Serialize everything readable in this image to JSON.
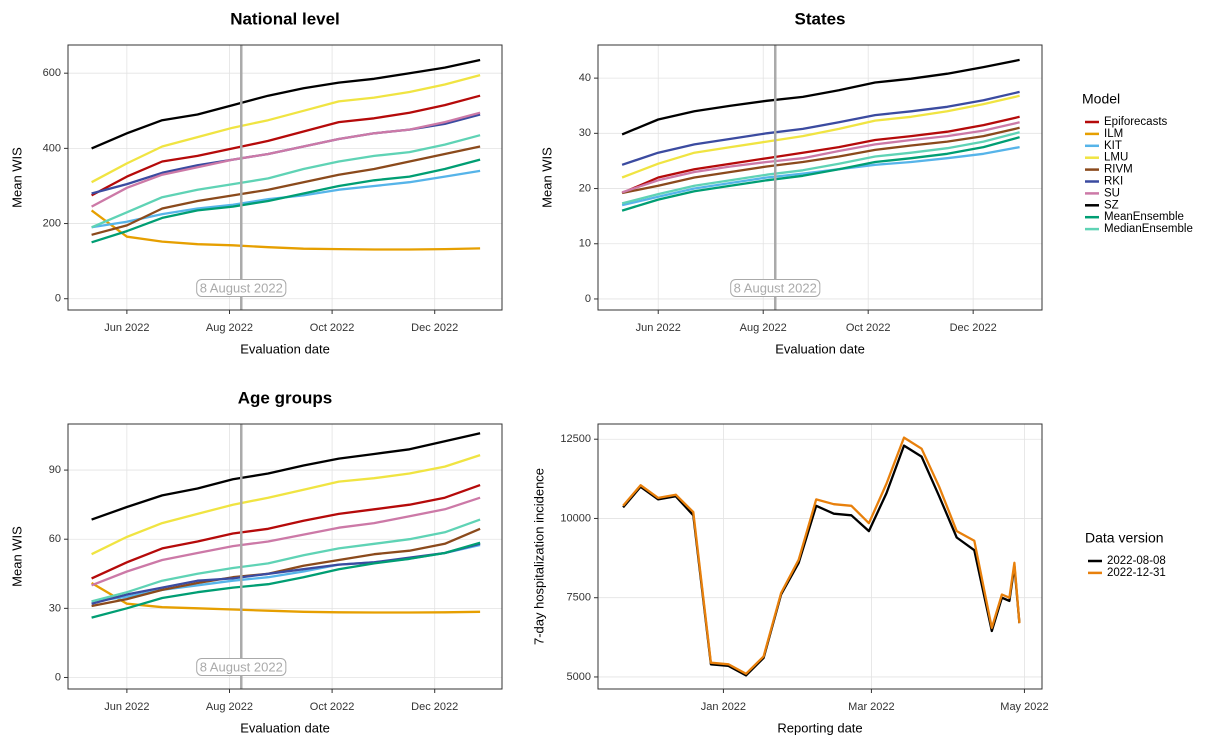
{
  "chart_data": [
    {
      "type": "line",
      "title": "National level",
      "x_label": "Evaluation date",
      "y_label": "Mean WIS",
      "x": [
        "2022-05-11",
        "2022-06-01",
        "2022-06-22",
        "2022-07-13",
        "2022-08-03",
        "2022-08-24",
        "2022-09-14",
        "2022-10-05",
        "2022-10-26",
        "2022-11-16",
        "2022-12-07",
        "2022-12-28"
      ],
      "xlim": [
        "2022-04-27",
        "2023-01-10"
      ],
      "xticks": [
        {
          "value": "2022-06-01",
          "label": "Jun 2022"
        },
        {
          "value": "2022-08-01",
          "label": "Aug 2022"
        },
        {
          "value": "2022-10-01",
          "label": "Oct 2022"
        },
        {
          "value": "2022-12-01",
          "label": "Dec 2022"
        }
      ],
      "ylim": [
        -30,
        675
      ],
      "yticks": [
        0,
        200,
        400,
        600
      ],
      "grid": true,
      "vline": {
        "x": "2022-08-08",
        "label": "8 August 2022"
      },
      "legend": {
        "title": "Model"
      },
      "series": [
        {
          "name": "Epiforecasts",
          "color": "#b50a0a",
          "values": [
            275,
            325,
            365,
            380,
            400,
            420,
            445,
            470,
            480,
            495,
            515,
            540
          ]
        },
        {
          "name": "ILM",
          "color": "#e69f00",
          "values": [
            235,
            165,
            152,
            145,
            142,
            137,
            133,
            132,
            131,
            131,
            132,
            134
          ]
        },
        {
          "name": "KIT",
          "color": "#56b4e9",
          "values": [
            190,
            205,
            225,
            240,
            250,
            265,
            275,
            290,
            300,
            310,
            325,
            340
          ]
        },
        {
          "name": "LMU",
          "color": "#f0e442",
          "values": [
            310,
            360,
            405,
            430,
            455,
            475,
            500,
            525,
            535,
            550,
            570,
            595
          ]
        },
        {
          "name": "RIVM",
          "color": "#8b4a1c",
          "values": [
            170,
            195,
            240,
            260,
            275,
            290,
            310,
            330,
            345,
            365,
            385,
            405
          ]
        },
        {
          "name": "RKI",
          "color": "#3b4ba0",
          "values": [
            280,
            305,
            335,
            355,
            370,
            385,
            405,
            425,
            440,
            450,
            465,
            490
          ]
        },
        {
          "name": "SU",
          "color": "#cc79a7",
          "values": [
            245,
            295,
            330,
            350,
            370,
            385,
            405,
            425,
            440,
            450,
            470,
            495
          ]
        },
        {
          "name": "SZ",
          "color": "#000000",
          "values": [
            400,
            440,
            475,
            490,
            515,
            540,
            560,
            575,
            585,
            600,
            615,
            635
          ]
        },
        {
          "name": "MeanEnsemble",
          "color": "#009e73",
          "values": [
            150,
            180,
            215,
            235,
            245,
            260,
            280,
            300,
            315,
            325,
            345,
            370
          ]
        },
        {
          "name": "MedianEnsemble",
          "color": "#5fd3b5",
          "values": [
            190,
            230,
            270,
            290,
            305,
            320,
            345,
            365,
            380,
            390,
            410,
            435
          ]
        }
      ]
    },
    {
      "type": "line",
      "title": "States",
      "x_label": "Evaluation date",
      "y_label": "Mean WIS",
      "x": [
        "2022-05-11",
        "2022-06-01",
        "2022-06-22",
        "2022-07-13",
        "2022-08-03",
        "2022-08-24",
        "2022-09-14",
        "2022-10-05",
        "2022-10-26",
        "2022-11-16",
        "2022-12-07",
        "2022-12-28"
      ],
      "xlim": [
        "2022-04-27",
        "2023-01-10"
      ],
      "xticks": [
        {
          "value": "2022-06-01",
          "label": "Jun 2022"
        },
        {
          "value": "2022-08-01",
          "label": "Aug 2022"
        },
        {
          "value": "2022-10-01",
          "label": "Oct 2022"
        },
        {
          "value": "2022-12-01",
          "label": "Dec 2022"
        }
      ],
      "ylim": [
        -2,
        46
      ],
      "yticks": [
        0,
        10,
        20,
        30,
        40
      ],
      "grid": true,
      "vline": {
        "x": "2022-08-08",
        "label": "8 August 2022"
      },
      "series": [
        {
          "name": "Epiforecasts",
          "color": "#b50a0a",
          "values": [
            19.2,
            22,
            23.5,
            24.5,
            25.5,
            26.5,
            27.5,
            28.8,
            29.5,
            30.3,
            31.5,
            33
          ]
        },
        {
          "name": "KIT",
          "color": "#56b4e9",
          "values": [
            17,
            18.5,
            20,
            21,
            22,
            22.7,
            23.5,
            24.3,
            24.8,
            25.5,
            26.3,
            27.5
          ]
        },
        {
          "name": "LMU",
          "color": "#f0e442",
          "values": [
            22,
            24.5,
            26.5,
            27.5,
            28.5,
            29.5,
            30.8,
            32.3,
            33,
            34,
            35.3,
            36.8
          ]
        },
        {
          "name": "RIVM",
          "color": "#8b4a1c",
          "values": [
            19.2,
            20.5,
            22,
            23,
            24,
            24.8,
            25.8,
            27,
            27.8,
            28.5,
            29.5,
            31
          ]
        },
        {
          "name": "RKI",
          "color": "#3b4ba0",
          "values": [
            24.3,
            26.5,
            28,
            29,
            30,
            30.8,
            32,
            33.3,
            34,
            34.8,
            36,
            37.5
          ]
        },
        {
          "name": "SU",
          "color": "#cc79a7",
          "values": [
            19.3,
            21.5,
            23,
            24,
            24.8,
            25.5,
            26.8,
            28,
            28.8,
            29.5,
            30.5,
            32
          ]
        },
        {
          "name": "SZ",
          "color": "#000000",
          "values": [
            29.8,
            32.5,
            34,
            35,
            35.9,
            36.6,
            37.8,
            39.2,
            39.9,
            40.8,
            42,
            43.3
          ]
        },
        {
          "name": "MeanEnsemble",
          "color": "#009e73",
          "values": [
            16,
            18,
            19.5,
            20.5,
            21.5,
            22.3,
            23.5,
            24.8,
            25.5,
            26.3,
            27.5,
            29.3
          ]
        },
        {
          "name": "MedianEnsemble",
          "color": "#5fd3b5",
          "values": [
            17.3,
            19,
            20.5,
            21.5,
            22.5,
            23.3,
            24.5,
            25.8,
            26.5,
            27.3,
            28.5,
            30.2
          ]
        }
      ]
    },
    {
      "type": "line",
      "title": "Age groups",
      "x_label": "Evaluation date",
      "y_label": "Mean WIS",
      "x": [
        "2022-05-11",
        "2022-06-01",
        "2022-06-22",
        "2022-07-13",
        "2022-08-03",
        "2022-08-24",
        "2022-09-14",
        "2022-10-05",
        "2022-10-26",
        "2022-11-16",
        "2022-12-07",
        "2022-12-28"
      ],
      "xlim": [
        "2022-04-27",
        "2023-01-10"
      ],
      "xticks": [
        {
          "value": "2022-06-01",
          "label": "Jun 2022"
        },
        {
          "value": "2022-08-01",
          "label": "Aug 2022"
        },
        {
          "value": "2022-10-01",
          "label": "Oct 2022"
        },
        {
          "value": "2022-12-01",
          "label": "Dec 2022"
        }
      ],
      "ylim": [
        -5,
        110
      ],
      "yticks": [
        0,
        30,
        60,
        90
      ],
      "grid": true,
      "vline": {
        "x": "2022-08-08",
        "label": "8 August 2022"
      },
      "series": [
        {
          "name": "Epiforecasts",
          "color": "#b50a0a",
          "values": [
            43,
            50,
            56,
            59,
            62.5,
            64.5,
            68,
            71,
            73,
            75,
            78,
            83.5
          ]
        },
        {
          "name": "ILM",
          "color": "#e69f00",
          "values": [
            41,
            32,
            30.5,
            30,
            29.5,
            29,
            28.5,
            28.3,
            28.2,
            28.2,
            28.3,
            28.5
          ]
        },
        {
          "name": "KIT",
          "color": "#56b4e9",
          "values": [
            33,
            35,
            38,
            40,
            42,
            43.5,
            46,
            49,
            50,
            51.5,
            54,
            57.5
          ]
        },
        {
          "name": "LMU",
          "color": "#f0e442",
          "values": [
            53.5,
            61,
            67,
            71,
            75,
            78,
            81.5,
            85,
            86.5,
            88.5,
            91.5,
            96.5
          ]
        },
        {
          "name": "RIVM",
          "color": "#8b4a1c",
          "values": [
            31,
            34,
            38,
            41,
            43.5,
            45,
            48.5,
            51,
            53.5,
            55,
            58,
            64.5
          ]
        },
        {
          "name": "RKI",
          "color": "#3b4ba0",
          "values": [
            32,
            36,
            39,
            42,
            43,
            45,
            47,
            49,
            50,
            52,
            54,
            58
          ]
        },
        {
          "name": "SU",
          "color": "#cc79a7",
          "values": [
            40,
            46,
            51,
            54,
            57,
            59,
            62,
            65,
            67,
            70,
            73,
            78
          ]
        },
        {
          "name": "SZ",
          "color": "#000000",
          "values": [
            68.5,
            74,
            79,
            82,
            86,
            88.5,
            92,
            95,
            97,
            99,
            102.5,
            106
          ]
        },
        {
          "name": "MeanEnsemble",
          "color": "#009e73",
          "values": [
            26,
            30,
            34.5,
            37,
            39,
            40.5,
            43.5,
            47,
            49.5,
            51.5,
            54,
            58.5
          ]
        },
        {
          "name": "MedianEnsemble",
          "color": "#5fd3b5",
          "values": [
            33,
            37,
            42,
            45,
            47.5,
            49.5,
            53,
            56,
            58,
            60,
            63,
            68.5
          ]
        }
      ]
    },
    {
      "type": "line",
      "x_label": "Reporting date",
      "y_label": "7-day hospitalization incidence",
      "x": [
        "2021-11-22",
        "2021-11-29",
        "2021-12-06",
        "2021-12-13",
        "2021-12-20",
        "2021-12-27",
        "2022-01-03",
        "2022-01-10",
        "2022-01-17",
        "2022-01-24",
        "2022-01-31",
        "2022-02-07",
        "2022-02-14",
        "2022-02-21",
        "2022-02-28",
        "2022-03-07",
        "2022-03-14",
        "2022-03-21",
        "2022-03-28",
        "2022-04-04",
        "2022-04-11",
        "2022-04-18",
        "2022-04-22",
        "2022-04-25",
        "2022-04-27",
        "2022-04-29"
      ],
      "xlim": [
        "2021-11-12",
        "2022-05-08"
      ],
      "xticks": [
        {
          "value": "2022-01-01",
          "label": "Jan 2022"
        },
        {
          "value": "2022-03-01",
          "label": "Mar 2022"
        },
        {
          "value": "2022-05-01",
          "label": "May 2022"
        }
      ],
      "ylim": [
        4620,
        12980
      ],
      "yticks": [
        5000,
        7500,
        10000,
        12500
      ],
      "grid": true,
      "legend": {
        "title": "Data version"
      },
      "series": [
        {
          "name": "2022-08-08",
          "color": "#000000",
          "values": [
            10350,
            11000,
            10600,
            10700,
            10100,
            5400,
            5350,
            5050,
            5600,
            7600,
            8600,
            10400,
            10150,
            10100,
            9600,
            10800,
            12300,
            11950,
            10700,
            9400,
            9000,
            6450,
            7500,
            7400,
            8500,
            6700
          ]
        },
        {
          "name": "2022-12-31",
          "color": "#e8800c",
          "values": [
            10400,
            11050,
            10650,
            10750,
            10200,
            5450,
            5400,
            5100,
            5650,
            7650,
            8700,
            10600,
            10450,
            10400,
            9850,
            11100,
            12550,
            12200,
            11000,
            9600,
            9300,
            6550,
            7600,
            7500,
            8600,
            6700
          ]
        }
      ]
    }
  ]
}
